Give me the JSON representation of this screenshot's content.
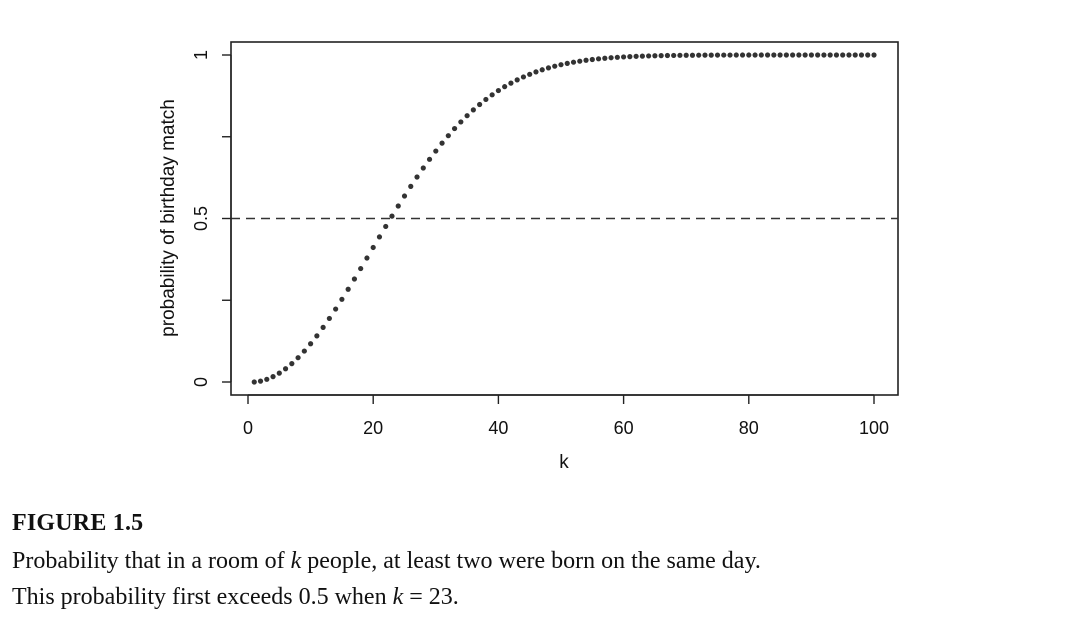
{
  "chart_data": {
    "type": "scatter",
    "title": "",
    "xlabel": "k",
    "ylabel": "probability of birthday match",
    "xlim": [
      1,
      100
    ],
    "ylim": [
      0,
      1
    ],
    "x_ticks": [
      0,
      20,
      40,
      60,
      80,
      100
    ],
    "y_ticks": [
      0,
      0.5,
      1
    ],
    "y_tick_labels": [
      "0",
      "0.5",
      "1"
    ],
    "grid": false,
    "reference_line": {
      "y": 0.5,
      "style": "dashed"
    },
    "marker_color": "#333333",
    "series": [
      {
        "x": [
          1,
          2,
          3,
          4,
          5,
          6,
          7,
          8,
          9,
          10,
          11,
          12,
          13,
          14,
          15,
          16,
          17,
          18,
          19,
          20,
          21,
          22,
          23,
          24,
          25,
          26,
          27,
          28,
          29,
          30,
          31,
          32,
          33,
          34,
          35,
          36,
          37,
          38,
          39,
          40,
          41,
          42,
          43,
          44,
          45,
          46,
          47,
          48,
          49,
          50,
          51,
          52,
          53,
          54,
          55,
          56,
          57,
          58,
          59,
          60,
          61,
          62,
          63,
          64,
          65,
          66,
          67,
          68,
          69,
          70,
          71,
          72,
          73,
          74,
          75,
          76,
          77,
          78,
          79,
          80,
          81,
          82,
          83,
          84,
          85,
          86,
          87,
          88,
          89,
          90,
          91,
          92,
          93,
          94,
          95,
          96,
          97,
          98,
          99,
          100
        ],
        "y": [
          0.0,
          0.0027,
          0.0082,
          0.0164,
          0.0271,
          0.0405,
          0.0562,
          0.0743,
          0.0946,
          0.1169,
          0.1411,
          0.167,
          0.1944,
          0.2231,
          0.2529,
          0.2836,
          0.315,
          0.3469,
          0.3791,
          0.4114,
          0.4437,
          0.4757,
          0.5073,
          0.5383,
          0.5687,
          0.5982,
          0.6269,
          0.6545,
          0.681,
          0.7063,
          0.7305,
          0.7533,
          0.775,
          0.7953,
          0.8144,
          0.8322,
          0.8487,
          0.8641,
          0.8782,
          0.8912,
          0.9032,
          0.914,
          0.9239,
          0.9329,
          0.941,
          0.9483,
          0.9548,
          0.9606,
          0.9658,
          0.9704,
          0.9744,
          0.978,
          0.9811,
          0.9839,
          0.9863,
          0.9883,
          0.9901,
          0.9917,
          0.993,
          0.9941,
          0.9951,
          0.9959,
          0.9966,
          0.9972,
          0.9977,
          0.9981,
          0.9984,
          0.9987,
          0.999,
          0.9992,
          0.9993,
          0.9995,
          0.9996,
          0.9996,
          0.9997,
          0.9998,
          0.9998,
          0.9999,
          0.9999,
          0.9999,
          0.9999,
          0.9999,
          1.0,
          1.0,
          1.0,
          1.0,
          1.0,
          1.0,
          1.0,
          1.0,
          1.0,
          1.0,
          1.0,
          1.0,
          1.0,
          1.0,
          1.0,
          1.0,
          1.0,
          1.0
        ]
      }
    ]
  },
  "caption": {
    "figure_label": "FIGURE 1.5",
    "line1_a": "Probability that in a room of ",
    "line1_var": "k",
    "line1_b": " people, at least two were born on the same day.",
    "line2_a": "This probability first exceeds 0.5 when ",
    "line2_var": "k",
    "line2_b": " = 23."
  }
}
